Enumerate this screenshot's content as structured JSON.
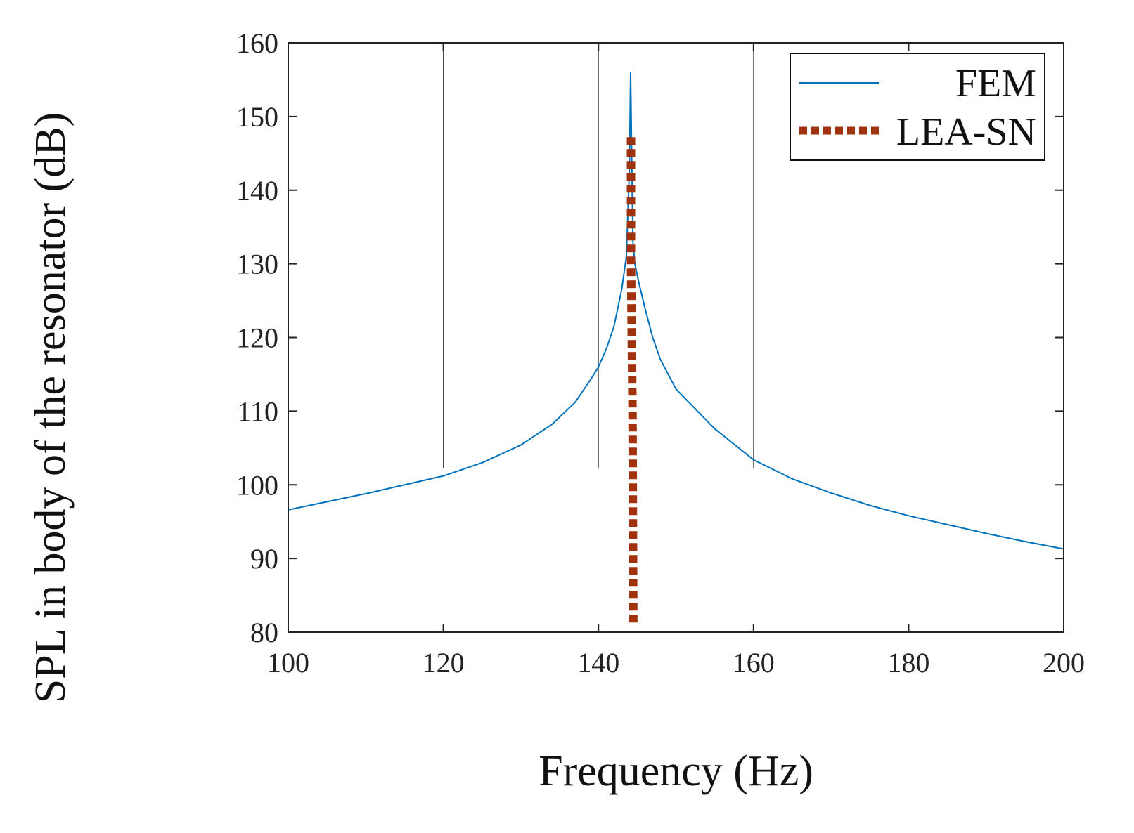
{
  "chart_data": {
    "type": "line",
    "xlabel": "Frequency (Hz)",
    "ylabel": "SPL in body of the resonator (dB)",
    "xlim": [
      100,
      200
    ],
    "ylim": [
      80,
      160
    ],
    "xticks": [
      100,
      120,
      140,
      160,
      180,
      200
    ],
    "yticks": [
      80,
      90,
      100,
      110,
      120,
      130,
      140,
      150,
      160
    ],
    "vertical_lines": [
      {
        "x": 120,
        "y_bottom": 80,
        "y_top": 160,
        "y_cut": 102.3
      },
      {
        "x": 140,
        "y_bottom": 80,
        "y_top": 160,
        "y_cut": 102.3
      },
      {
        "x": 160,
        "y_bottom": 80,
        "y_top": 160,
        "y_cut": 102.3
      }
    ],
    "legend_position": "top-right",
    "series": [
      {
        "name": "FEM",
        "color": "#0072BD",
        "style": "solid",
        "x": [
          100,
          105,
          110,
          115,
          120,
          125,
          130,
          134,
          137,
          139,
          140,
          141,
          142,
          143,
          143.6,
          144.0,
          144.15,
          144.3,
          144.45,
          144.7,
          145.2,
          146,
          147,
          148,
          150,
          155,
          160,
          165,
          170,
          175,
          180,
          185,
          190,
          195,
          200
        ],
        "values": [
          96.6,
          97.7,
          98.8,
          100.0,
          101.2,
          103.0,
          105.4,
          108.2,
          111.2,
          114.3,
          116.0,
          118.4,
          121.5,
          126.5,
          131.0,
          143.0,
          156.0,
          144.0,
          133.0,
          130.0,
          127.5,
          124.0,
          120.0,
          117.0,
          113.0,
          107.6,
          103.4,
          100.8,
          98.9,
          97.2,
          95.8,
          94.6,
          93.4,
          92.3,
          91.3
        ]
      },
      {
        "name": "LEA-SN",
        "color": "#A0330E",
        "style": "dotted",
        "x": [
          144.2,
          144.2,
          144.4,
          144.5
        ],
        "values": [
          147.2,
          130.0,
          110.0,
          81.0
        ]
      }
    ]
  }
}
